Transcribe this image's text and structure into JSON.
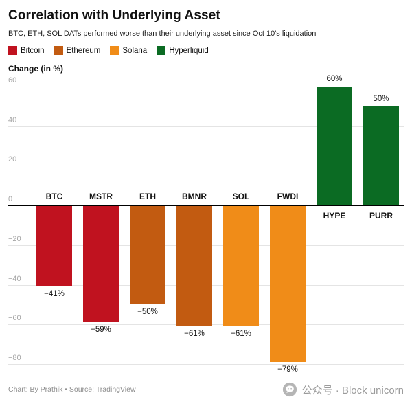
{
  "header": {
    "title": "Correlation with Underlying Asset",
    "subtitle": "BTC, ETH, SOL DATs performed worse than their underlying asset since Oct 10's liquidation"
  },
  "legend": [
    {
      "label": "Bitcoin",
      "color": "#c0121f"
    },
    {
      "label": "Ethereum",
      "color": "#c25b11"
    },
    {
      "label": "Solana",
      "color": "#f08c18"
    },
    {
      "label": "Hyperliquid",
      "color": "#0b6b23"
    }
  ],
  "axis_label": "Change (in %)",
  "chart_data": {
    "type": "bar",
    "title": "Correlation with Underlying Asset",
    "categories": [
      "BTC",
      "MSTR",
      "ETH",
      "BMNR",
      "SOL",
      "FWDI",
      "HYPE",
      "PURR"
    ],
    "values": [
      -41,
      -59,
      -50,
      -61,
      -61,
      -79,
      60,
      50
    ],
    "value_labels": [
      "−41%",
      "−59%",
      "−50%",
      "−61%",
      "−61%",
      "−79%",
      "60%",
      "50%"
    ],
    "groups": [
      "Bitcoin",
      "Bitcoin",
      "Ethereum",
      "Ethereum",
      "Solana",
      "Solana",
      "Hyperliquid",
      "Hyperliquid"
    ],
    "xlabel": "",
    "ylabel": "Change (in %)",
    "ylim": [
      -80,
      60
    ],
    "yticks": [
      60,
      40,
      20,
      0,
      -20,
      -40,
      -60,
      -80
    ],
    "ytick_labels": [
      "60",
      "40",
      "20",
      "0",
      "−20",
      "−40",
      "−60",
      "−80"
    ],
    "grid": true,
    "legend_position": "top"
  },
  "footer": {
    "credit": "Chart: By Prathik • Source: TradingView",
    "watermark": "公众号 · Block unicorn"
  }
}
